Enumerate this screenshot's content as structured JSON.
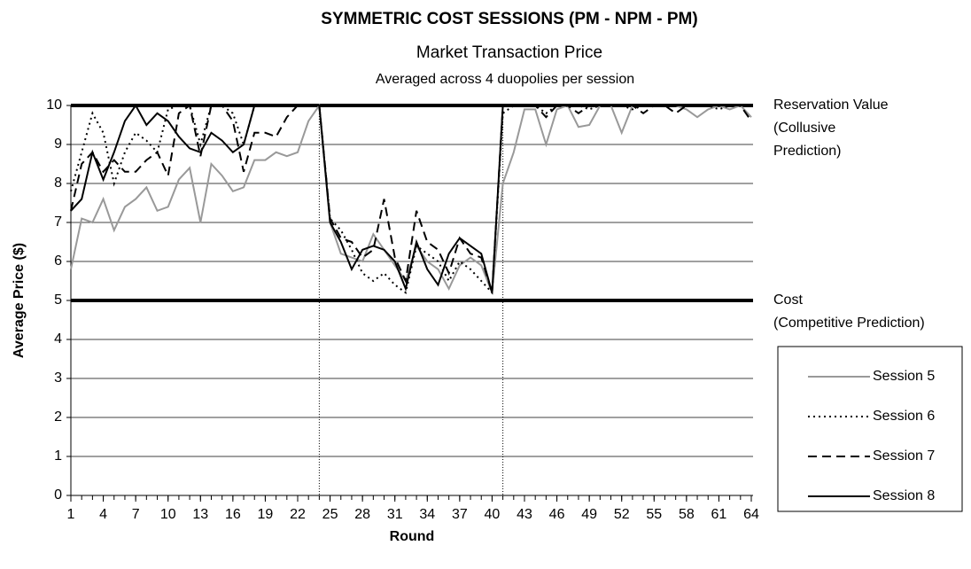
{
  "chart_data": {
    "type": "line",
    "title": "SYMMETRIC COST SESSIONS  (PM - NPM - PM)",
    "subtitle": "Market Transaction Price",
    "subtitle2": "Averaged across 4 duopolies per session",
    "x_label": "Round",
    "y_label": "Average Price ($)",
    "x": [
      1,
      2,
      3,
      4,
      5,
      6,
      7,
      8,
      9,
      10,
      11,
      12,
      13,
      14,
      15,
      16,
      17,
      18,
      19,
      20,
      21,
      22,
      23,
      24,
      25,
      26,
      27,
      28,
      29,
      30,
      31,
      32,
      33,
      34,
      35,
      36,
      37,
      38,
      39,
      40,
      41,
      42,
      43,
      44,
      45,
      46,
      47,
      48,
      49,
      50,
      51,
      52,
      53,
      54,
      55,
      56,
      57,
      58,
      59,
      60,
      61,
      62,
      63,
      64
    ],
    "xlim": [
      1,
      64
    ],
    "xticks": [
      1,
      4,
      7,
      10,
      13,
      16,
      19,
      22,
      25,
      28,
      31,
      34,
      37,
      40,
      43,
      46,
      49,
      52,
      55,
      58,
      61,
      64
    ],
    "ylim": [
      0,
      10
    ],
    "yticks": [
      0,
      1,
      2,
      3,
      4,
      5,
      6,
      7,
      8,
      9,
      10
    ],
    "grid": true,
    "legend": "right",
    "reference_lines": {
      "y": [
        10,
        5
      ],
      "x": [
        24,
        41
      ]
    },
    "annotations": [
      {
        "y": 10,
        "lines": [
          "Reservation Value",
          "(Collusive",
          "Prediction)"
        ]
      },
      {
        "y": 5,
        "lines": [
          "Cost",
          "(Competitive Prediction)"
        ]
      }
    ],
    "series": [
      {
        "name": "Session 5",
        "color": "#999999",
        "dash": "none",
        "values": [
          5.8,
          7.1,
          7.0,
          7.6,
          6.8,
          7.4,
          7.6,
          7.9,
          7.3,
          7.4,
          8.1,
          8.4,
          7.0,
          8.5,
          8.2,
          7.8,
          7.9,
          8.6,
          8.6,
          8.8,
          8.7,
          8.8,
          9.6,
          10,
          7.0,
          6.2,
          6.1,
          6.0,
          6.7,
          6.3,
          5.9,
          5.5,
          6.4,
          6.0,
          5.8,
          5.3,
          5.9,
          6.1,
          5.9,
          5.2,
          8.0,
          8.8,
          9.9,
          9.9,
          9.0,
          9.9,
          10,
          9.45,
          9.5,
          10,
          10,
          9.3,
          10,
          10,
          10,
          10,
          10,
          9.9,
          9.7,
          9.9,
          10,
          9.9,
          10,
          9.7
        ]
      },
      {
        "name": "Session 6",
        "color": "#000000",
        "dash": "2,4",
        "values": [
          7.8,
          8.8,
          9.8,
          9.3,
          8.0,
          8.8,
          9.3,
          9.1,
          8.8,
          9.9,
          10,
          10,
          9.0,
          10,
          10,
          9.8,
          9.0,
          10,
          10,
          10,
          10,
          10,
          10,
          10,
          7.1,
          6.8,
          6.3,
          5.7,
          5.5,
          5.7,
          5.4,
          5.2,
          6.4,
          6.2,
          6.0,
          5.5,
          6.0,
          5.8,
          5.5,
          5.2,
          9.8,
          10,
          10,
          10,
          9.8,
          10,
          10,
          10,
          9.9,
          10,
          10,
          10,
          9.9,
          10,
          10,
          10,
          10,
          10,
          10,
          10,
          9.9,
          10,
          10,
          10
        ]
      },
      {
        "name": "Session 7",
        "color": "#000000",
        "dash": "10,6",
        "values": [
          7.3,
          8.5,
          8.8,
          8.3,
          8.6,
          8.3,
          8.3,
          8.6,
          8.8,
          8.2,
          9.8,
          10,
          8.7,
          10,
          10,
          9.6,
          8.3,
          9.3,
          9.3,
          9.2,
          9.7,
          10,
          10,
          10,
          7.1,
          6.6,
          6.5,
          6.1,
          6.3,
          7.6,
          6.1,
          5.5,
          7.3,
          6.5,
          6.3,
          5.7,
          6.6,
          6.2,
          6.1,
          5.2,
          10,
          10,
          10,
          10,
          9.7,
          10,
          10,
          9.8,
          10,
          10,
          10,
          10,
          10,
          9.8,
          10,
          10,
          9.8,
          10,
          10,
          10,
          10,
          10,
          10,
          9.6
        ]
      },
      {
        "name": "Session 8",
        "color": "#000000",
        "dash": "none",
        "values": [
          7.3,
          7.6,
          8.8,
          8.1,
          8.8,
          9.6,
          10,
          9.5,
          9.8,
          9.6,
          9.2,
          8.9,
          8.8,
          9.3,
          9.1,
          8.8,
          9.0,
          10,
          10,
          10,
          10,
          10,
          10,
          10,
          7.0,
          6.5,
          5.8,
          6.3,
          6.4,
          6.3,
          6.0,
          5.3,
          6.5,
          5.8,
          5.4,
          6.2,
          6.6,
          6.4,
          6.2,
          5.2,
          10,
          10,
          10,
          10,
          10,
          10,
          10,
          10,
          10,
          10,
          10,
          10,
          10,
          10,
          10,
          10,
          10,
          10,
          10,
          10,
          10,
          10,
          10,
          10
        ]
      }
    ]
  }
}
